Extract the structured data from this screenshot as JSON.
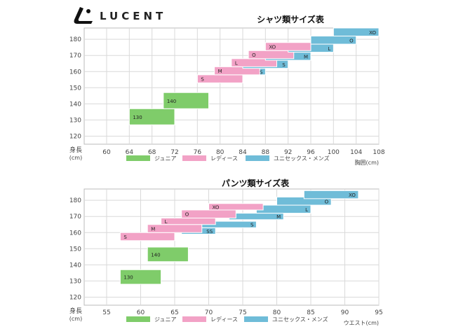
{
  "brand": {
    "name": "LUCENT",
    "logo_icon": "lucent-logo-icon"
  },
  "colors": {
    "junior": "#7fcc6a",
    "ladies": "#f2a2c6",
    "unisex": "#6fbcd8",
    "grid": "#d9d9d9",
    "axis_text": "#444444",
    "bar_stroke": "#ffffff"
  },
  "chart_data": [
    {
      "type": "bar",
      "orientation": "horizontal-range",
      "title": "シャツ類サイズ表",
      "ylabel": [
        "身長",
        "(cm)"
      ],
      "xlabel": "胸囲(cm)",
      "xlim": [
        56,
        108
      ],
      "ylim": [
        115,
        187
      ],
      "xticks": [
        60,
        64,
        68,
        72,
        76,
        80,
        84,
        88,
        92,
        96,
        100,
        104,
        108
      ],
      "yticks": [
        120,
        130,
        140,
        150,
        160,
        170,
        180
      ],
      "grid": true,
      "legend": [
        {
          "key": "junior",
          "label": "ジュニア"
        },
        {
          "key": "ladies",
          "label": "レディース"
        },
        {
          "key": "unisex",
          "label": "ユニセックス・メンズ"
        }
      ],
      "bars": [
        {
          "series": "junior",
          "label": "130",
          "x": [
            64,
            72
          ],
          "y": [
            127,
            137
          ]
        },
        {
          "series": "junior",
          "label": "140",
          "x": [
            70,
            78
          ],
          "y": [
            137,
            147
          ]
        },
        {
          "series": "ladies",
          "label": "S",
          "x": [
            76,
            84
          ],
          "y": [
            153,
            158
          ]
        },
        {
          "series": "unisex",
          "label": "SS",
          "x": [
            80,
            88
          ],
          "y": [
            158,
            162
          ]
        },
        {
          "series": "ladies",
          "label": "M",
          "x": [
            79,
            87
          ],
          "y": [
            158,
            163
          ]
        },
        {
          "series": "unisex",
          "label": "S",
          "x": [
            84,
            92
          ],
          "y": [
            162,
            167
          ]
        },
        {
          "series": "ladies",
          "label": "L",
          "x": [
            82,
            90
          ],
          "y": [
            163,
            168
          ]
        },
        {
          "series": "unisex",
          "label": "M",
          "x": [
            88,
            96
          ],
          "y": [
            167,
            172
          ]
        },
        {
          "series": "ladies",
          "label": "O",
          "x": [
            85,
            93
          ],
          "y": [
            168,
            173
          ]
        },
        {
          "series": "unisex",
          "label": "L",
          "x": [
            92,
            100
          ],
          "y": [
            172,
            177
          ]
        },
        {
          "series": "ladies",
          "label": "XO",
          "x": [
            88,
            96
          ],
          "y": [
            173,
            178
          ]
        },
        {
          "series": "unisex",
          "label": "O",
          "x": [
            96,
            104
          ],
          "y": [
            177,
            182
          ]
        },
        {
          "series": "unisex",
          "label": "XO",
          "x": [
            100,
            108
          ],
          "y": [
            182,
            187
          ]
        }
      ]
    },
    {
      "type": "bar",
      "orientation": "horizontal-range",
      "title": "パンツ類サイズ表",
      "ylabel": [
        "身長",
        "(cm)"
      ],
      "xlabel": "ウエスト(cm)",
      "xlim": [
        50,
        95
      ],
      "ylim": [
        115,
        187
      ],
      "xticks": [
        55,
        60,
        65,
        70,
        75,
        80,
        85,
        90,
        95
      ],
      "yticks": [
        120,
        130,
        140,
        150,
        160,
        170,
        180
      ],
      "grid": true,
      "legend": [
        {
          "key": "junior",
          "label": "ジュニア"
        },
        {
          "key": "ladies",
          "label": "レディース"
        },
        {
          "key": "unisex",
          "label": "ユニセックス・メンズ"
        }
      ],
      "bars": [
        {
          "series": "junior",
          "label": "130",
          "x": [
            57,
            63
          ],
          "y": [
            128,
            137
          ]
        },
        {
          "series": "junior",
          "label": "140",
          "x": [
            61,
            67
          ],
          "y": [
            142,
            151
          ]
        },
        {
          "series": "ladies",
          "label": "S",
          "x": [
            57,
            65
          ],
          "y": [
            155,
            160
          ]
        },
        {
          "series": "unisex",
          "label": "SS",
          "x": [
            66,
            71
          ],
          "y": [
            159,
            163
          ]
        },
        {
          "series": "ladies",
          "label": "M",
          "x": [
            61,
            69
          ],
          "y": [
            160,
            165
          ]
        },
        {
          "series": "unisex",
          "label": "S",
          "x": [
            69,
            77
          ],
          "y": [
            163,
            167
          ]
        },
        {
          "series": "ladies",
          "label": "L",
          "x": [
            63,
            71
          ],
          "y": [
            165,
            169
          ]
        },
        {
          "series": "unisex",
          "label": "M",
          "x": [
            73,
            81
          ],
          "y": [
            168,
            172
          ]
        },
        {
          "series": "ladies",
          "label": "O",
          "x": [
            66,
            74
          ],
          "y": [
            169,
            174
          ]
        },
        {
          "series": "unisex",
          "label": "L",
          "x": [
            77,
            85
          ],
          "y": [
            172,
            177
          ]
        },
        {
          "series": "ladies",
          "label": "XO",
          "x": [
            70,
            78
          ],
          "y": [
            174,
            178
          ]
        },
        {
          "series": "unisex",
          "label": "O",
          "x": [
            80,
            88
          ],
          "y": [
            177,
            182
          ]
        },
        {
          "series": "unisex",
          "label": "XO",
          "x": [
            84,
            92
          ],
          "y": [
            181,
            186
          ]
        }
      ]
    }
  ]
}
